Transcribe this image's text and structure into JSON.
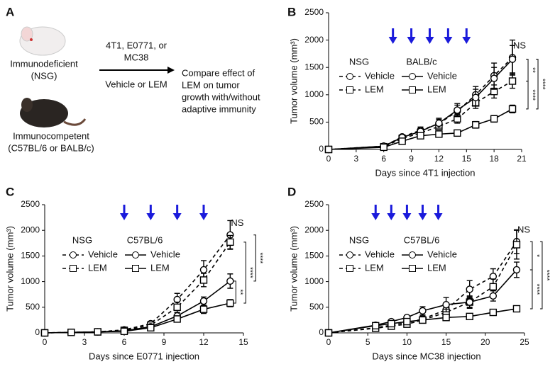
{
  "schematic": {
    "panel": "A",
    "top_mouse_label": [
      "Immunodeficient",
      "(NSG)"
    ],
    "bottom_mouse_label": [
      "Immunocompetent",
      "(C57BL/6 or BALB/c)"
    ],
    "arrow_top_label": [
      "4T1, E0771, or",
      "MC38"
    ],
    "arrow_bottom_label": "Vehicle or LEM",
    "outcome_label": [
      "Compare effect of",
      "LEM on tumor",
      "growth with/without",
      "adaptive immunity"
    ]
  },
  "chart_data": [
    {
      "type": "line",
      "panel": "B",
      "x_label": "Days since 4T1 injection",
      "y_label": "Tumor volume (mm³)",
      "x": [
        0,
        6,
        8,
        10,
        12,
        14,
        16,
        18,
        20
      ],
      "series": [
        {
          "name": "Vehicle",
          "group": "NSG",
          "dashed": true,
          "marker": "circle",
          "values": [
            0,
            60,
            230,
            350,
            470,
            700,
            1000,
            1350,
            1680
          ],
          "errors": [
            0,
            20,
            40,
            60,
            80,
            110,
            150,
            230,
            320
          ]
        },
        {
          "name": "LEM",
          "group": "NSG",
          "dashed": true,
          "marker": "square",
          "values": [
            0,
            50,
            200,
            300,
            420,
            560,
            850,
            1060,
            1250
          ],
          "errors": [
            0,
            20,
            40,
            50,
            60,
            80,
            100,
            120,
            130
          ]
        },
        {
          "name": "Vehicle",
          "group": "BALB/c",
          "dashed": false,
          "marker": "circle",
          "values": [
            0,
            60,
            220,
            330,
            480,
            720,
            950,
            1300,
            1650
          ],
          "errors": [
            0,
            20,
            40,
            60,
            90,
            120,
            150,
            200,
            250
          ]
        },
        {
          "name": "LEM",
          "group": "BALB/c",
          "dashed": false,
          "marker": "square",
          "values": [
            0,
            40,
            150,
            250,
            280,
            300,
            450,
            560,
            740
          ],
          "errors": [
            0,
            15,
            30,
            40,
            40,
            40,
            60,
            60,
            70
          ]
        }
      ],
      "dosing_days": [
        7,
        9,
        11,
        13,
        15
      ],
      "arrow_color": "#1a1adb",
      "annotations": [
        "NS",
        "**",
        "****",
        "****"
      ],
      "xlim": [
        0,
        21
      ],
      "xticks": [
        0,
        3,
        6,
        9,
        12,
        15,
        18,
        21
      ],
      "ylim": [
        0,
        2500
      ],
      "yticks": [
        0,
        500,
        1000,
        1500,
        2000,
        2500
      ]
    },
    {
      "type": "line",
      "panel": "C",
      "x_label": "Days since E0771 injection",
      "y_label": "Tumor volume (mm³)",
      "x": [
        0,
        2,
        4,
        6,
        8,
        10,
        12,
        14
      ],
      "series": [
        {
          "name": "Vehicle",
          "group": "NSG",
          "dashed": true,
          "marker": "circle",
          "values": [
            0,
            10,
            20,
            60,
            180,
            650,
            1230,
            1910
          ],
          "errors": [
            0,
            5,
            10,
            20,
            40,
            120,
            180,
            280
          ]
        },
        {
          "name": "LEM",
          "group": "NSG",
          "dashed": true,
          "marker": "square",
          "values": [
            0,
            10,
            20,
            50,
            150,
            500,
            1030,
            1770
          ],
          "errors": [
            0,
            5,
            10,
            20,
            40,
            100,
            130,
            130
          ]
        },
        {
          "name": "Vehicle",
          "group": "C57BL/6",
          "dashed": false,
          "marker": "circle",
          "values": [
            0,
            10,
            20,
            40,
            120,
            330,
            620,
            1010
          ],
          "errors": [
            0,
            5,
            10,
            15,
            30,
            70,
            80,
            140
          ]
        },
        {
          "name": "LEM",
          "group": "C57BL/6",
          "dashed": false,
          "marker": "square",
          "values": [
            0,
            10,
            20,
            30,
            100,
            270,
            460,
            580
          ],
          "errors": [
            0,
            5,
            10,
            15,
            30,
            60,
            80,
            70
          ]
        }
      ],
      "dosing_days": [
        6,
        8,
        10,
        12
      ],
      "arrow_color": "#1a1adb",
      "annotations": [
        "NS",
        "**",
        "****",
        "****"
      ],
      "xlim": [
        0,
        15
      ],
      "xticks": [
        0,
        3,
        6,
        9,
        12,
        15
      ],
      "ylim": [
        0,
        2500
      ],
      "yticks": [
        0,
        500,
        1000,
        1500,
        2000,
        2500
      ]
    },
    {
      "type": "line",
      "panel": "D",
      "x_label": "Days since MC38 injection",
      "y_label": "Tumor volume (mm³)",
      "x": [
        0,
        6,
        8,
        10,
        12,
        15,
        18,
        21,
        24
      ],
      "series": [
        {
          "name": "Vehicle",
          "group": "NSG",
          "dashed": true,
          "marker": "circle",
          "values": [
            0,
            100,
            150,
            200,
            270,
            450,
            850,
            1100,
            1780
          ],
          "errors": [
            0,
            20,
            30,
            40,
            60,
            100,
            170,
            150,
            230
          ]
        },
        {
          "name": "LEM",
          "group": "NSG",
          "dashed": true,
          "marker": "square",
          "values": [
            0,
            90,
            130,
            170,
            250,
            400,
            600,
            900,
            1720
          ],
          "errors": [
            0,
            20,
            30,
            40,
            60,
            100,
            120,
            150,
            280
          ]
        },
        {
          "name": "Vehicle",
          "group": "C57BL/6",
          "dashed": false,
          "marker": "circle",
          "values": [
            0,
            150,
            220,
            300,
            430,
            550,
            600,
            720,
            1230
          ],
          "errors": [
            0,
            20,
            30,
            40,
            80,
            140,
            100,
            100,
            150
          ]
        },
        {
          "name": "LEM",
          "group": "C57BL/6",
          "dashed": false,
          "marker": "square",
          "values": [
            0,
            140,
            180,
            220,
            250,
            300,
            320,
            400,
            470
          ],
          "errors": [
            0,
            20,
            30,
            30,
            30,
            30,
            40,
            40,
            50
          ]
        }
      ],
      "dosing_days": [
        6,
        8,
        10,
        12,
        14
      ],
      "arrow_color": "#1a1adb",
      "annotations": [
        "NS",
        "*",
        "****",
        "****"
      ],
      "xlim": [
        0,
        25
      ],
      "xticks": [
        0,
        5,
        10,
        15,
        20,
        25
      ],
      "ylim": [
        0,
        2500
      ],
      "yticks": [
        0,
        500,
        1000,
        1500,
        2000,
        2500
      ]
    }
  ]
}
